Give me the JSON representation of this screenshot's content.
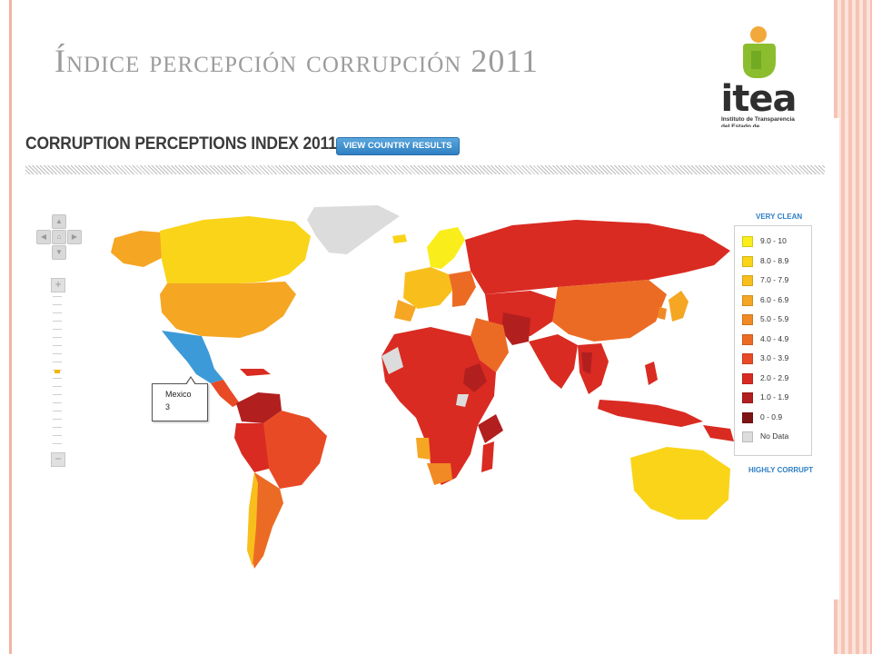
{
  "slide": {
    "title": "Índice percepción corrupción 2011"
  },
  "logo": {
    "word": "itea",
    "subtitle": "Instituto de Transparencia del Estado de Aguascalientes"
  },
  "map": {
    "title": "CORRUPTION PERCEPTIONS INDEX 2011",
    "results_button": "VIEW COUNTRY RESULTS",
    "callout": {
      "country": "Mexico",
      "score": "3"
    },
    "highlight_color": "#3c9ad8"
  },
  "legend": {
    "top_label": "VERY CLEAN",
    "bottom_label": "HIGHLY CORRUPT",
    "items": [
      {
        "label": "9.0 - 10",
        "color": "#f9ee1c"
      },
      {
        "label": "8.0 - 8.9",
        "color": "#fad419"
      },
      {
        "label": "7.0 - 7.9",
        "color": "#f8bf1c"
      },
      {
        "label": "6.0 - 6.9",
        "color": "#f5a623"
      },
      {
        "label": "5.0 - 5.9",
        "color": "#f18a24"
      },
      {
        "label": "4.0 - 4.9",
        "color": "#ec6b24"
      },
      {
        "label": "3.0 - 3.9",
        "color": "#e84a25"
      },
      {
        "label": "2.0 - 2.9",
        "color": "#d92b22"
      },
      {
        "label": "1.0 - 1.9",
        "color": "#b21f1f"
      },
      {
        "label": "0 - 0.9",
        "color": "#7e1414"
      },
      {
        "label": "No Data",
        "color": "#dcdcdc"
      }
    ]
  }
}
